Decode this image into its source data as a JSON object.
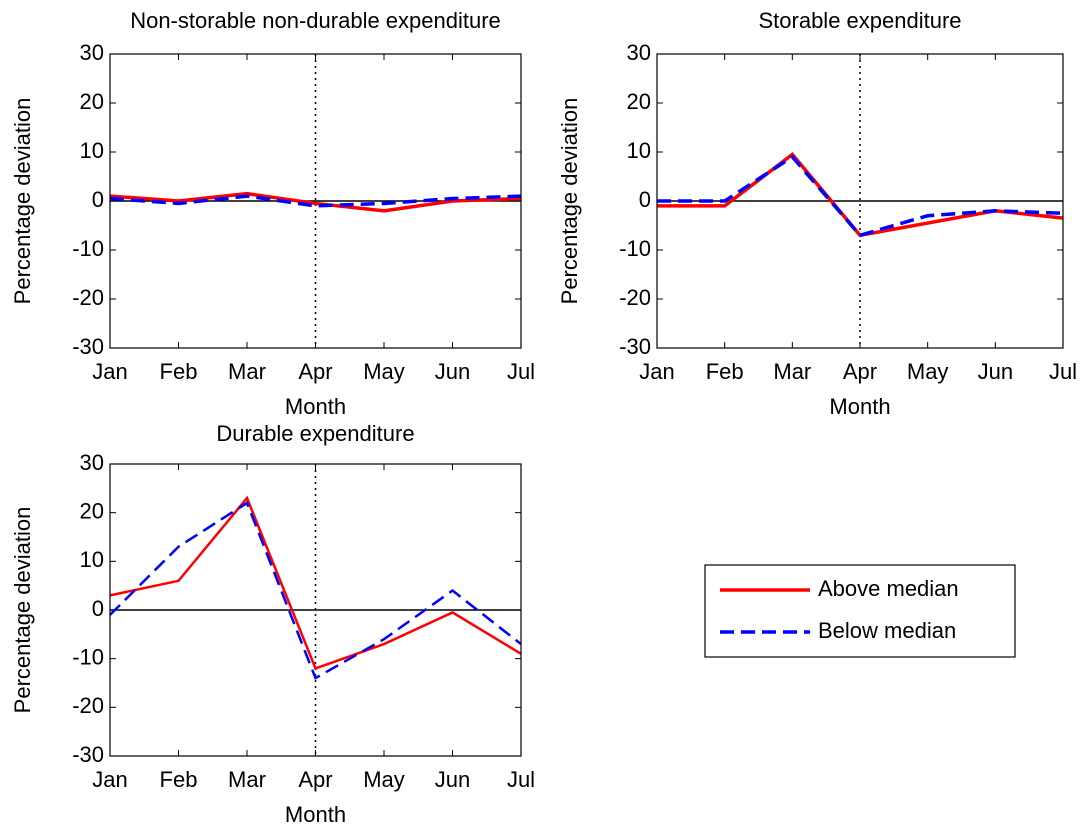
{
  "chart_data": [
    {
      "type": "line",
      "title": "Non-storable non-durable expenditure",
      "xlabel": "Month",
      "ylabel": "Percentage deviation",
      "categories": [
        "Jan",
        "Feb",
        "Mar",
        "Apr",
        "May",
        "Jun",
        "Jul"
      ],
      "series": [
        {
          "name": "Above median",
          "color": "#ff0000",
          "dash": "solid",
          "values": [
            1,
            0,
            1.5,
            -0.5,
            -2,
            0,
            0.5
          ]
        },
        {
          "name": "Below median",
          "color": "#0000ff",
          "dash": "dashed",
          "values": [
            0.5,
            -0.5,
            1,
            -1,
            -0.5,
            0.5,
            1
          ]
        }
      ],
      "ylim": [
        -30,
        30
      ],
      "yticks": [
        -30,
        -20,
        -10,
        0,
        10,
        20,
        30
      ],
      "hline": 0,
      "vline": "Apr"
    },
    {
      "type": "line",
      "title": "Storable expenditure",
      "xlabel": "Month",
      "ylabel": "Percentage deviation",
      "categories": [
        "Jan",
        "Feb",
        "Mar",
        "Apr",
        "May",
        "Jun",
        "Jul"
      ],
      "series": [
        {
          "name": "Above median",
          "color": "#ff0000",
          "dash": "solid",
          "values": [
            -1,
            -1,
            9.5,
            -7,
            -4.5,
            -2,
            -3.5
          ]
        },
        {
          "name": "Below median",
          "color": "#0000ff",
          "dash": "dashed",
          "values": [
            0,
            0,
            9,
            -7,
            -3,
            -2,
            -2.5
          ]
        }
      ],
      "ylim": [
        -30,
        30
      ],
      "yticks": [
        -30,
        -20,
        -10,
        0,
        10,
        20,
        30
      ],
      "hline": 0,
      "vline": "Apr"
    },
    {
      "type": "line",
      "title": "Durable expenditure",
      "xlabel": "Month",
      "ylabel": "Percentage deviation",
      "categories": [
        "Jan",
        "Feb",
        "Mar",
        "Apr",
        "May",
        "Jun",
        "Jul"
      ],
      "series": [
        {
          "name": "Above median",
          "color": "#ff0000",
          "dash": "solid",
          "values": [
            3,
            6,
            23,
            -12,
            -7,
            -0.5,
            -9
          ]
        },
        {
          "name": "Below median",
          "color": "#0000ff",
          "dash": "dashed",
          "values": [
            -1,
            13,
            22,
            -14,
            -6,
            4,
            -7
          ]
        }
      ],
      "ylim": [
        -30,
        30
      ],
      "yticks": [
        -30,
        -20,
        -10,
        0,
        10,
        20,
        30
      ],
      "hline": 0,
      "vline": "Apr"
    }
  ]
}
